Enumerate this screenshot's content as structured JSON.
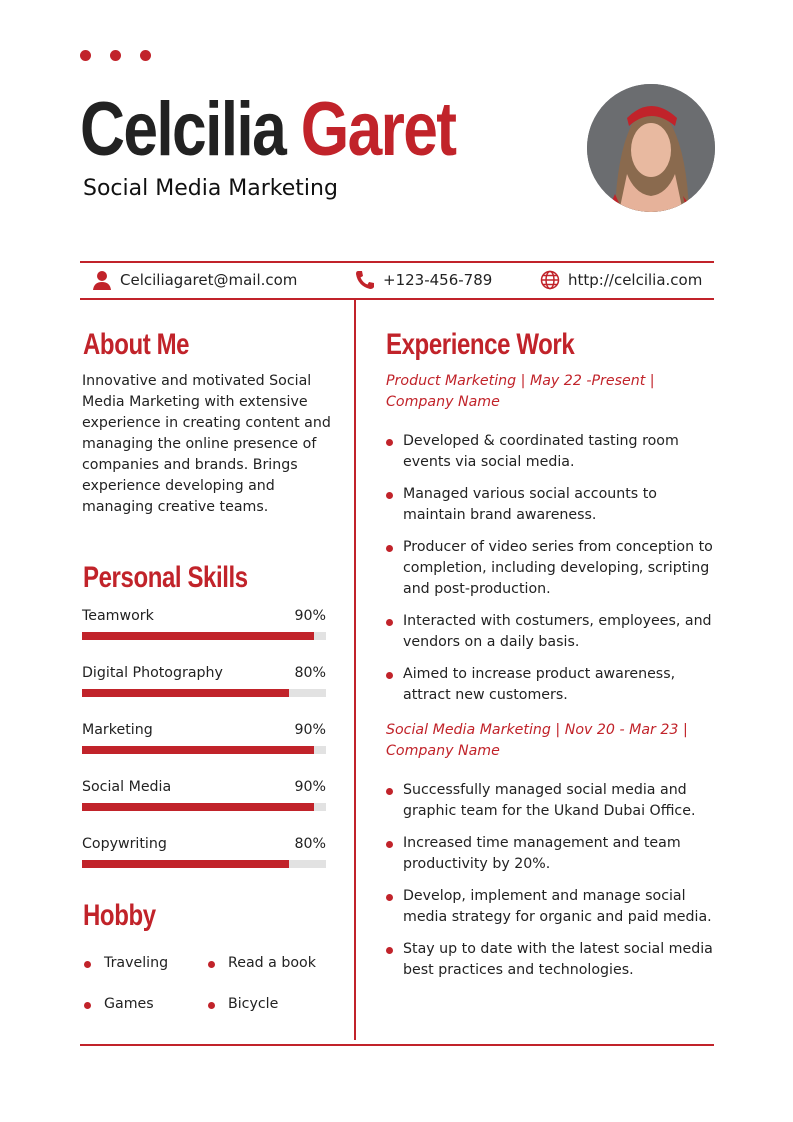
{
  "colors": {
    "accent": "#c1232a",
    "track": "#e2e2e2",
    "text": "#222222"
  },
  "header": {
    "first_name": "Celcilia",
    "last_name": "Garet",
    "role": "Social Media Marketing"
  },
  "contact": {
    "email": "Celciliagaret@mail.com",
    "phone": "+123-456-789",
    "website": "http://celcilia.com",
    "icons": [
      "person-icon",
      "phone-icon",
      "globe-icon"
    ]
  },
  "about": {
    "title": "About Me",
    "text": "Innovative and motivated Social Media Marketing with extensive experience in creating content and managing the online presence of companies and brands. Brings experience developing and managing creative teams."
  },
  "skills": {
    "title": "Personal Skills",
    "items": [
      {
        "label": "Teamwork",
        "value": "90%",
        "level": 90
      },
      {
        "label": "Digital Photography",
        "value": "80%",
        "level": 80
      },
      {
        "label": "Marketing",
        "value": "90%",
        "level": 90
      },
      {
        "label": "Social Media",
        "value": "90%",
        "level": 90
      },
      {
        "label": "Copywriting",
        "value": "80%",
        "level": 80
      }
    ]
  },
  "hobby": {
    "title": "Hobby",
    "items": [
      "Traveling",
      "Read a book",
      "Games",
      "Bicycle"
    ]
  },
  "experience": {
    "title": "Experience Work",
    "jobs": [
      {
        "title": "Product Marketing | May 22 -Present | Company Name",
        "bullets": [
          "Developed & coordinated tasting room events via social media.",
          "Managed various social accounts to maintain brand awareness.",
          "Producer of video series from conception to completion, including developing, scripting and post-production.",
          "Interacted with costumers, employees, and vendors on a daily basis.",
          "Aimed to increase product awareness, attract new customers."
        ]
      },
      {
        "title": "Social Media Marketing | Nov 20 - Mar 23 | Company Name",
        "bullets": [
          "Successfully managed social media and graphic team for the Ukand Dubai Office.",
          "Increased time management and team productivity by 20%.",
          "Develop, implement and manage social media strategy for organic and paid media.",
          "Stay up to date with the latest social media best practices and technologies."
        ]
      }
    ]
  }
}
